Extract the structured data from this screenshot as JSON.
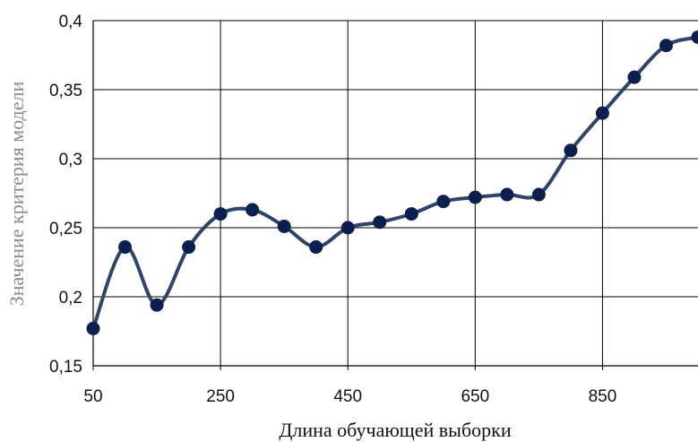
{
  "chart_data": {
    "type": "line",
    "title": "",
    "xlabel": "Длина обучающей выборки",
    "ylabel": "Значение критерия модели",
    "xlim": [
      50,
      1000
    ],
    "ylim": [
      0.15,
      0.4
    ],
    "x_ticks": [
      50,
      250,
      450,
      650,
      850
    ],
    "x_tick_labels": [
      "50",
      "250",
      "450",
      "650",
      "850"
    ],
    "y_ticks": [
      0.15,
      0.2,
      0.25,
      0.3,
      0.35,
      0.4
    ],
    "y_tick_labels": [
      "0,15",
      "0,2",
      "0,25",
      "0,3",
      "0,35",
      "0,4"
    ],
    "grid": true,
    "line_color": "#2e4468",
    "marker_color": "#0d1f4f",
    "series": [
      {
        "x": [
          50,
          100,
          150,
          200,
          250,
          300,
          350,
          400,
          450,
          500,
          550,
          600,
          650,
          700,
          750,
          800,
          850,
          900,
          950,
          1000
        ],
        "values": [
          0.177,
          0.236,
          0.194,
          0.236,
          0.26,
          0.263,
          0.251,
          0.236,
          0.25,
          0.254,
          0.26,
          0.269,
          0.272,
          0.274,
          0.274,
          0.306,
          0.333,
          0.359,
          0.382,
          0.388
        ]
      }
    ]
  }
}
